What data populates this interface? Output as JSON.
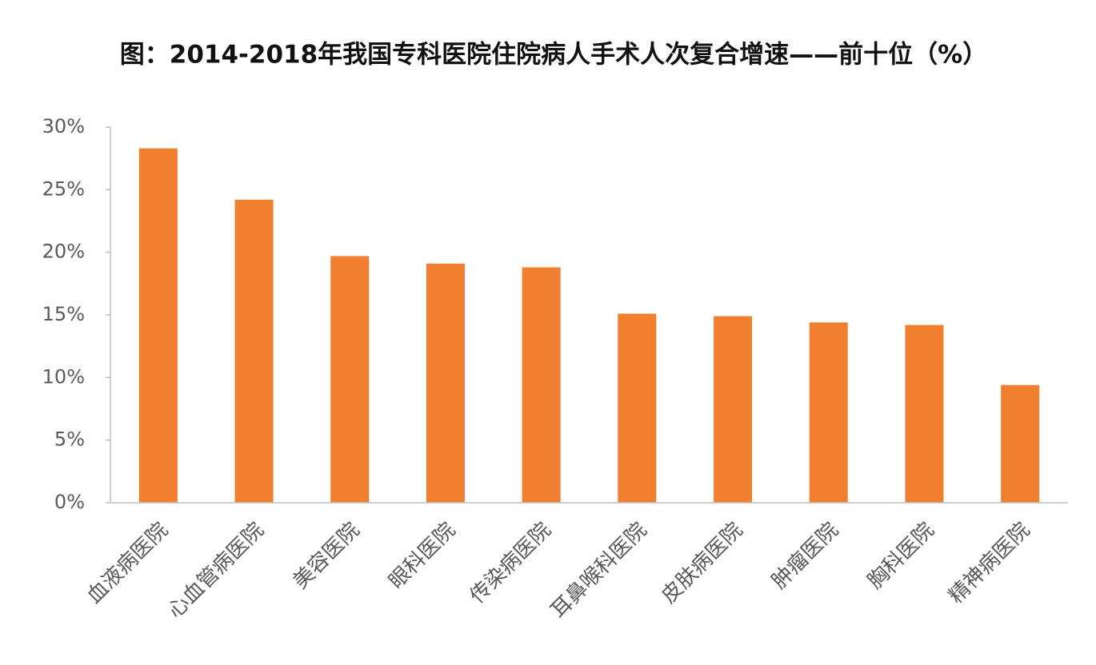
{
  "chart_data": {
    "type": "bar",
    "title": "图：2014-2018年我国专科医院住院病人手术人次复合增速——前十位（%）",
    "categories": [
      "血液病医院",
      "心血管病医院",
      "美容医院",
      "眼科医院",
      "传染病医院",
      "耳鼻喉科医院",
      "皮肤病医院",
      "肿瘤医院",
      "胸科医院",
      "精神病医院"
    ],
    "values": [
      28.3,
      24.2,
      19.7,
      19.1,
      18.8,
      15.1,
      14.9,
      14.4,
      14.2,
      9.4
    ],
    "color": "#f08030",
    "ylim": [
      0,
      30
    ],
    "yticks": [
      {
        "value": 0,
        "label": "0%"
      },
      {
        "value": 5,
        "label": "5%"
      },
      {
        "value": 10,
        "label": "10%"
      },
      {
        "value": 15,
        "label": "15%"
      },
      {
        "value": 20,
        "label": "20%"
      },
      {
        "value": 25,
        "label": "25%"
      },
      {
        "value": 30,
        "label": "30%"
      }
    ],
    "grid": false
  }
}
